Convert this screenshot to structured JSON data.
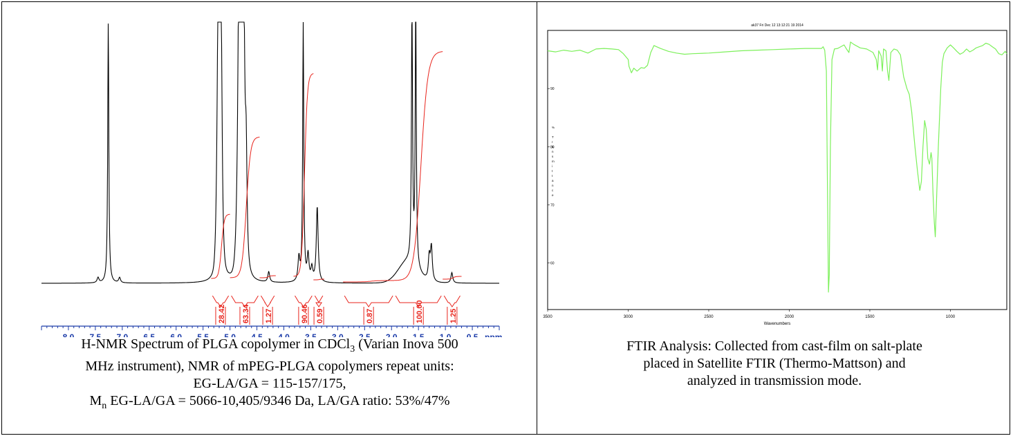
{
  "nmr": {
    "caption": {
      "line1_pre": "H-NMR Spectrum of PLGA copolymer in CDCl",
      "line1_sub": "3",
      "line1_post": " (Varian Inova 500",
      "line2": "MHz instrument), NMR of mPEG-PLGA copolymers repeat units:",
      "line3": "EG-LA/GA = 115-157/175,",
      "line4_pre": "M",
      "line4_sub": "n",
      "line4_post": " EG-LA/GA = 5066-10,405/9346 Da, LA/GA ratio: 53%/47%"
    }
  },
  "ftir": {
    "caption": {
      "line1": "FTIR Analysis: Collected from cast-film on salt-plate",
      "line2": "placed in Satellite FTIR (Thermo-Mattson) and",
      "line3": "analyzed in transmission mode."
    }
  },
  "chart_data": [
    {
      "type": "line",
      "name": "nmr",
      "x_unit_label": "ppm",
      "xlim": [
        8.5,
        0.0
      ],
      "x_reversed": true,
      "x_ticks": [
        8.0,
        7.5,
        7.0,
        6.5,
        6.0,
        5.5,
        5.0,
        4.5,
        4.0,
        3.5,
        3.0,
        2.5,
        2.0,
        1.5,
        1.0,
        0.5
      ],
      "x_tick_labels": [
        "8.0",
        "7.5",
        "7.0",
        "6.5",
        "6.0",
        "5.5",
        "5.0",
        "4.5",
        "4.0",
        "3.5",
        "3.0",
        "2.5",
        "2.0",
        "1.5",
        "1.0",
        "0.5"
      ],
      "spectrum_color": "#000000",
      "integral_color": "#e8231b",
      "peaks": [
        {
          "ppm": 7.26,
          "height": 1.0
        },
        {
          "ppm": 7.45,
          "height": 0.02
        },
        {
          "ppm": 7.05,
          "height": 0.02
        },
        {
          "ppm": 5.22,
          "height": 0.52
        },
        {
          "ppm": 5.19,
          "height": 0.58
        },
        {
          "ppm": 5.16,
          "height": 0.5
        },
        {
          "ppm": 4.84,
          "height": 0.58
        },
        {
          "ppm": 4.8,
          "height": 1.0
        },
        {
          "ppm": 4.77,
          "height": 1.0
        },
        {
          "ppm": 4.74,
          "height": 0.6
        },
        {
          "ppm": 4.7,
          "height": 0.4
        },
        {
          "ppm": 4.28,
          "height": 0.04
        },
        {
          "ppm": 3.72,
          "height": 0.09
        },
        {
          "ppm": 3.64,
          "height": 1.0
        },
        {
          "ppm": 3.55,
          "height": 0.1
        },
        {
          "ppm": 3.48,
          "height": 0.05
        },
        {
          "ppm": 3.38,
          "height": 0.29
        },
        {
          "ppm": 1.62,
          "height": 1.0
        },
        {
          "ppm": 1.55,
          "height": 1.0
        },
        {
          "ppm": 1.3,
          "height": 0.09
        },
        {
          "ppm": 1.26,
          "height": 0.13
        },
        {
          "ppm": 0.88,
          "height": 0.04
        }
      ],
      "integrals": [
        {
          "from": 5.35,
          "to": 5.0,
          "value": 28.42,
          "label": "28.42"
        },
        {
          "from": 5.0,
          "to": 4.45,
          "value": 63.34,
          "label": "63.34"
        },
        {
          "from": 4.45,
          "to": 4.15,
          "value": 1.27,
          "label": "1.27"
        },
        {
          "from": 3.82,
          "to": 3.45,
          "value": 90.46,
          "label": "90.46"
        },
        {
          "from": 3.45,
          "to": 3.25,
          "value": 0.59,
          "label": "0.59"
        },
        {
          "from": 2.9,
          "to": 1.95,
          "value": 0.87,
          "label": "0.87"
        },
        {
          "from": 1.95,
          "to": 1.05,
          "value": 100.0,
          "label": "100.00"
        },
        {
          "from": 1.05,
          "to": 0.7,
          "value": 1.25,
          "label": "1.25"
        }
      ]
    },
    {
      "type": "line",
      "name": "ftir",
      "title": "ak37  Fri Dec 12 13:12:21 19 2014",
      "xlabel": "Wavenumbers",
      "ylabel": "% Transmittance",
      "xlim": [
        3500,
        650
      ],
      "x_reversed": true,
      "ylim": [
        52,
        100
      ],
      "x_ticks": [
        3500,
        3000,
        2500,
        2000,
        1500,
        1000
      ],
      "x_tick_labels": [
        "3500",
        "3000",
        "2500",
        "2000",
        "1500",
        "1000"
      ],
      "y_ticks": [
        60,
        70,
        80,
        90
      ],
      "y_tick_labels": [
        "60",
        "70",
        "80",
        "90"
      ],
      "line_color": "#7cf05a",
      "points": [
        [
          3500,
          96.5
        ],
        [
          3450,
          96.3
        ],
        [
          3400,
          96.6
        ],
        [
          3350,
          96.4
        ],
        [
          3300,
          96.6
        ],
        [
          3250,
          96.1
        ],
        [
          3200,
          96.8
        ],
        [
          3150,
          96.9
        ],
        [
          3100,
          96.8
        ],
        [
          3060,
          96.7
        ],
        [
          3030,
          96.0
        ],
        [
          3000,
          95.0
        ],
        [
          2995,
          93.8
        ],
        [
          2980,
          92.7
        ],
        [
          2965,
          93.5
        ],
        [
          2945,
          93.0
        ],
        [
          2920,
          93.6
        ],
        [
          2900,
          93.5
        ],
        [
          2880,
          94.0
        ],
        [
          2860,
          96.2
        ],
        [
          2840,
          97.4
        ],
        [
          2800,
          96.9
        ],
        [
          2750,
          96.4
        ],
        [
          2700,
          96.1
        ],
        [
          2650,
          95.9
        ],
        [
          2600,
          96.0
        ],
        [
          2500,
          96.1
        ],
        [
          2400,
          96.3
        ],
        [
          2300,
          96.5
        ],
        [
          2200,
          96.6
        ],
        [
          2100,
          96.7
        ],
        [
          2000,
          96.8
        ],
        [
          1900,
          96.9
        ],
        [
          1800,
          96.9
        ],
        [
          1790,
          97.2
        ],
        [
          1780,
          96.6
        ],
        [
          1770,
          93.0
        ],
        [
          1762,
          70.0
        ],
        [
          1757,
          55.0
        ],
        [
          1752,
          58.0
        ],
        [
          1745,
          80.0
        ],
        [
          1735,
          95.0
        ],
        [
          1720,
          96.8
        ],
        [
          1700,
          96.9
        ],
        [
          1680,
          97.2
        ],
        [
          1660,
          97.5
        ],
        [
          1645,
          96.8
        ],
        [
          1630,
          96.2
        ],
        [
          1620,
          98.0
        ],
        [
          1600,
          97.6
        ],
        [
          1560,
          97.0
        ],
        [
          1520,
          96.8
        ],
        [
          1480,
          96.2
        ],
        [
          1460,
          95.0
        ],
        [
          1452,
          93.2
        ],
        [
          1445,
          96.5
        ],
        [
          1430,
          95.6
        ],
        [
          1422,
          93.0
        ],
        [
          1415,
          96.8
        ],
        [
          1400,
          96.5
        ],
        [
          1390,
          93.0
        ],
        [
          1382,
          91.4
        ],
        [
          1370,
          96.2
        ],
        [
          1350,
          96.8
        ],
        [
          1330,
          96.6
        ],
        [
          1310,
          95.8
        ],
        [
          1290,
          92.0
        ],
        [
          1270,
          90.0
        ],
        [
          1255,
          89.0
        ],
        [
          1240,
          86.0
        ],
        [
          1220,
          80.0
        ],
        [
          1205,
          76.0
        ],
        [
          1190,
          72.5
        ],
        [
          1180,
          74.0
        ],
        [
          1170,
          80.0
        ],
        [
          1160,
          84.5
        ],
        [
          1150,
          83.0
        ],
        [
          1140,
          78.0
        ],
        [
          1130,
          77.0
        ],
        [
          1120,
          79.0
        ],
        [
          1115,
          78.0
        ],
        [
          1108,
          72.0
        ],
        [
          1100,
          67.0
        ],
        [
          1094,
          64.5
        ],
        [
          1087,
          70.0
        ],
        [
          1075,
          80.0
        ],
        [
          1060,
          90.0
        ],
        [
          1050,
          94.5
        ],
        [
          1040,
          96.0
        ],
        [
          1020,
          97.0
        ],
        [
          1000,
          97.5
        ],
        [
          980,
          97.0
        ],
        [
          960,
          96.4
        ],
        [
          940,
          95.9
        ],
        [
          920,
          96.2
        ],
        [
          900,
          96.8
        ],
        [
          880,
          96.3
        ],
        [
          860,
          96.6
        ],
        [
          840,
          97.0
        ],
        [
          820,
          97.2
        ],
        [
          800,
          97.4
        ],
        [
          780,
          97.8
        ],
        [
          760,
          97.6
        ],
        [
          740,
          97.2
        ],
        [
          720,
          96.8
        ],
        [
          700,
          96.0
        ],
        [
          680,
          95.8
        ],
        [
          660,
          96.4
        ],
        [
          650,
          96.0
        ]
      ]
    }
  ]
}
